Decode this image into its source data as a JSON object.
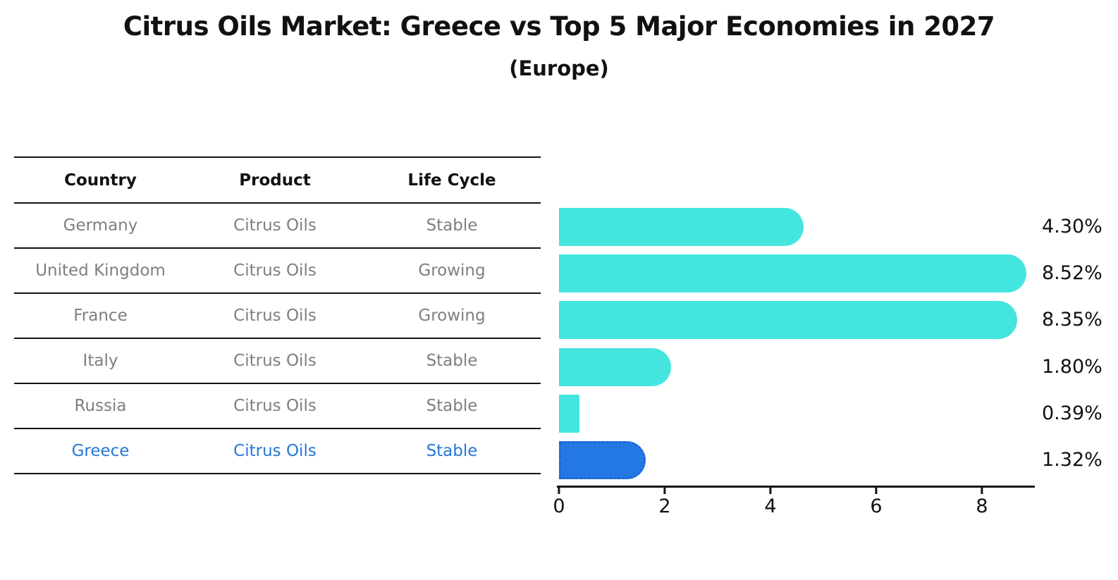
{
  "title": "Citrus Oils Market: Greece vs Top 5 Major Economies in 2027",
  "subtitle": "(Europe)",
  "table": {
    "headers": [
      "Country",
      "Product",
      "Life Cycle"
    ],
    "rows": [
      {
        "country": "Germany",
        "product": "Citrus Oils",
        "life_cycle": "Stable"
      },
      {
        "country": "United Kingdom",
        "product": "Citrus Oils",
        "life_cycle": "Growing"
      },
      {
        "country": "France",
        "product": "Citrus Oils",
        "life_cycle": "Growing"
      },
      {
        "country": "Italy",
        "product": "Citrus Oils",
        "life_cycle": "Stable"
      },
      {
        "country": "Russia",
        "product": "Citrus Oils",
        "life_cycle": "Stable"
      },
      {
        "country": "Greece",
        "product": "Citrus Oils",
        "life_cycle": "Stable"
      }
    ]
  },
  "chart_data": {
    "type": "bar",
    "orientation": "horizontal",
    "title": "Citrus Oils Market: Greece vs Top 5 Major Economies in 2027",
    "subtitle": "(Europe)",
    "categories": [
      "Germany",
      "United Kingdom",
      "France",
      "Italy",
      "Russia",
      "Greece"
    ],
    "values": [
      4.3,
      8.52,
      8.35,
      1.8,
      0.39,
      1.32
    ],
    "labels": [
      "4.30%",
      "8.52%",
      "8.35%",
      "1.80%",
      "0.39%",
      "1.32%"
    ],
    "xlim": [
      0,
      9
    ],
    "xticks": [
      0,
      2,
      4,
      6,
      8
    ],
    "grid": false,
    "legend": false,
    "highlight_index": 5,
    "bar_color": "#45E5DF",
    "highlight_color": "#2378E4"
  },
  "colors": {
    "bar_cyan": "#45E5DF",
    "bar_blue": "#2378E4",
    "bar_blue_border": "#1C66CF",
    "text_dark": "#111111",
    "text_gray": "#7f7f7f",
    "text_blue": "#2577D9",
    "line_color": "#141414"
  }
}
